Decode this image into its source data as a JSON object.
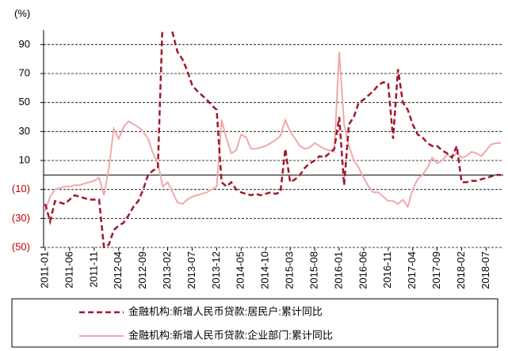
{
  "chart_data": {
    "type": "line",
    "y_unit_label": "(%)",
    "categories": [
      "2011-01",
      null,
      null,
      null,
      null,
      "2011-06",
      null,
      null,
      null,
      null,
      "2011-11",
      null,
      null,
      null,
      null,
      "2012-04",
      null,
      null,
      null,
      null,
      "2012-09",
      null,
      null,
      null,
      null,
      "2013-02",
      null,
      null,
      null,
      null,
      "2013-07",
      null,
      null,
      null,
      null,
      "2013-12",
      null,
      null,
      null,
      null,
      "2014-05",
      null,
      null,
      null,
      null,
      "2014-10",
      null,
      null,
      null,
      null,
      "2015-03",
      null,
      null,
      null,
      null,
      "2015-08",
      null,
      null,
      null,
      null,
      "2016-01",
      null,
      null,
      null,
      null,
      "2016-06",
      null,
      null,
      null,
      null,
      "2016-11",
      null,
      null,
      null,
      null,
      "2017-04",
      null,
      null,
      null,
      null,
      "2017-09",
      null,
      null,
      null,
      null,
      "2018-02",
      null,
      null,
      null,
      null,
      "2018-07",
      null,
      null,
      null
    ],
    "series": [
      {
        "name": "金融机构:新增人民币贷款:居民户:累计同比",
        "color": "#a3162a",
        "line_style": "dashed",
        "values": [
          -20,
          -32,
          -18,
          -19,
          -20,
          -17,
          -14,
          -15,
          -16,
          -17,
          -17,
          -17,
          -50,
          -48,
          -38,
          -35,
          -33,
          -28,
          -22,
          -18,
          -10,
          0,
          3,
          5,
          110,
          110,
          98,
          85,
          80,
          72,
          62,
          58,
          55,
          52,
          48,
          45,
          -5,
          -8,
          -5,
          -10,
          -12,
          -13,
          -14,
          -13,
          -14,
          -13,
          -12,
          -13,
          -12,
          18,
          -5,
          -3,
          0,
          5,
          8,
          10,
          13,
          12,
          15,
          18,
          40,
          -7,
          35,
          40,
          50,
          52,
          55,
          58,
          62,
          64,
          63,
          25,
          73,
          50,
          45,
          35,
          28,
          26,
          22,
          20,
          20,
          17,
          15,
          12,
          20,
          -5,
          -5,
          -4,
          -4,
          -3,
          -2,
          -1,
          0,
          0
        ]
      },
      {
        "name": "金融机构:新增人民币贷款:企业部门:累计同比",
        "color": "#f0a9a9",
        "line_style": "solid",
        "values": [
          -25,
          -15,
          -10,
          -9,
          -8,
          -8,
          -7,
          -7,
          -6,
          -5,
          -4,
          -2,
          -14,
          5,
          32,
          25,
          33,
          37,
          35,
          33,
          30,
          25,
          15,
          8,
          -8,
          -5,
          -12,
          -19,
          -20,
          -17,
          -15,
          -14,
          -13,
          -12,
          -10,
          -8,
          38,
          25,
          15,
          17,
          28,
          26,
          18,
          18,
          19,
          20,
          22,
          24,
          27,
          38,
          30,
          25,
          20,
          18,
          19,
          22,
          20,
          18,
          17,
          16,
          85,
          35,
          20,
          10,
          5,
          -2,
          -8,
          -12,
          -12,
          -15,
          -18,
          -18,
          -20,
          -17,
          -22,
          -10,
          -3,
          0,
          5,
          12,
          8,
          10,
          14,
          12,
          15,
          12,
          13,
          16,
          15,
          13,
          17,
          21,
          22,
          22
        ]
      }
    ],
    "ylim": [
      -50,
      100
    ],
    "yticks": [
      {
        "value": -50,
        "label": "(50)"
      },
      {
        "value": -30,
        "label": "(30)"
      },
      {
        "value": -10,
        "label": "(10)"
      },
      10,
      30,
      50,
      70,
      90
    ],
    "negative_tick_color": "#c00000",
    "grid": true
  }
}
